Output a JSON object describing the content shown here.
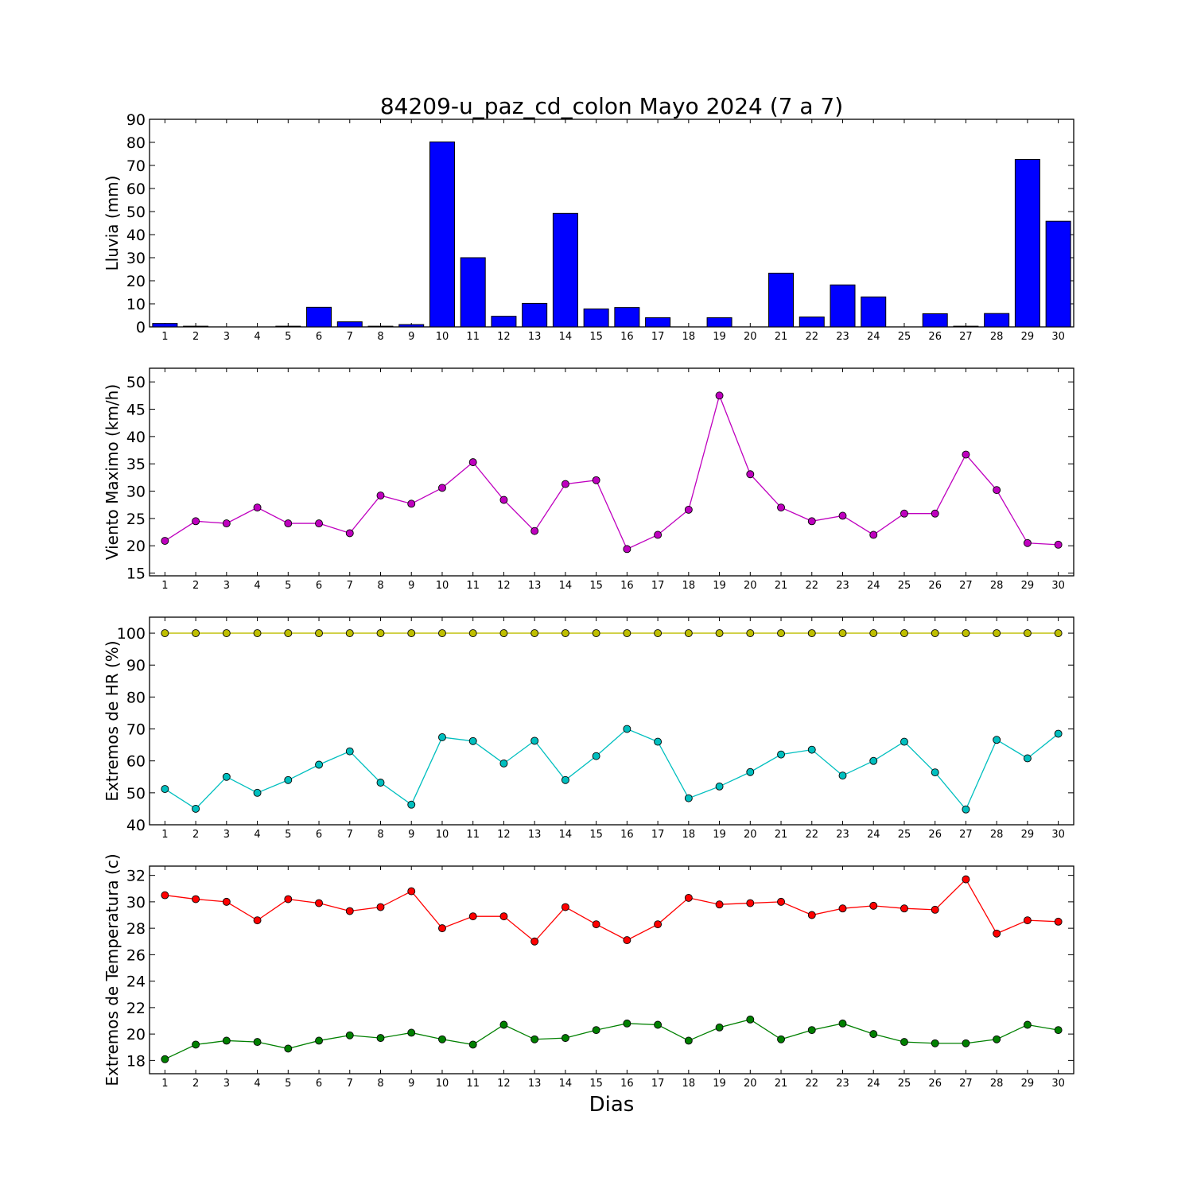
{
  "title": "84209-u_paz_cd_colon Mayo 2024  (7 a 7)",
  "xlabel": "Dias",
  "chart_data": [
    {
      "type": "bar",
      "ylabel": "Lluvia (mm)",
      "x": [
        1,
        2,
        3,
        4,
        5,
        6,
        7,
        8,
        9,
        10,
        11,
        12,
        13,
        14,
        15,
        16,
        17,
        18,
        19,
        20,
        21,
        22,
        23,
        24,
        25,
        26,
        27,
        28,
        29,
        30
      ],
      "ylim": [
        0,
        90
      ],
      "yticks": [
        0,
        10,
        20,
        30,
        40,
        50,
        60,
        70,
        80,
        90
      ],
      "series": [
        {
          "color": "#0000ff",
          "values": [
            1.5,
            0.3,
            0,
            0,
            0.3,
            8.5,
            2.2,
            0.3,
            1.0,
            80.2,
            30.0,
            4.6,
            10.2,
            49.2,
            7.8,
            8.4,
            4.0,
            0,
            4.0,
            0,
            23.3,
            4.3,
            18.2,
            13.0,
            0,
            5.7,
            0.3,
            5.8,
            72.6,
            45.8
          ]
        }
      ]
    },
    {
      "type": "line",
      "ylabel": "Viento Maximo (km/h)",
      "x": [
        1,
        2,
        3,
        4,
        5,
        6,
        7,
        8,
        9,
        10,
        11,
        12,
        13,
        14,
        15,
        16,
        17,
        18,
        19,
        20,
        21,
        22,
        23,
        24,
        25,
        26,
        27,
        28,
        29,
        30
      ],
      "ylim": [
        14.5,
        52.5
      ],
      "yticks": [
        15,
        20,
        25,
        30,
        35,
        40,
        45,
        50
      ],
      "series": [
        {
          "color": "#bf00bf",
          "values": [
            20.9,
            24.5,
            24.1,
            27.0,
            24.1,
            24.1,
            22.3,
            29.2,
            27.7,
            30.6,
            35.3,
            28.4,
            22.7,
            31.3,
            32.0,
            19.4,
            22.0,
            26.6,
            47.5,
            33.1,
            27.0,
            24.5,
            25.5,
            22.0,
            25.9,
            25.9,
            36.7,
            30.2,
            20.5,
            20.2
          ]
        }
      ]
    },
    {
      "type": "line",
      "ylabel": "Extremos de HR (%)",
      "x": [
        1,
        2,
        3,
        4,
        5,
        6,
        7,
        8,
        9,
        10,
        11,
        12,
        13,
        14,
        15,
        16,
        17,
        18,
        19,
        20,
        21,
        22,
        23,
        24,
        25,
        26,
        27,
        28,
        29,
        30
      ],
      "ylim": [
        40,
        105
      ],
      "yticks": [
        40,
        50,
        60,
        70,
        80,
        90,
        100
      ],
      "series": [
        {
          "color": "#bfbf00",
          "values": [
            100,
            100,
            100,
            100,
            100,
            100,
            100,
            100,
            100,
            100,
            100,
            100,
            100,
            100,
            100,
            100,
            100,
            100,
            100,
            100,
            100,
            100,
            100,
            100,
            100,
            100,
            100,
            100,
            100,
            100
          ]
        },
        {
          "color": "#00bfbf",
          "values": [
            51.2,
            45.0,
            55.0,
            50.0,
            54.0,
            58.8,
            63.0,
            53.2,
            46.3,
            67.4,
            66.2,
            59.2,
            66.3,
            54.0,
            61.5,
            70.0,
            66.0,
            48.3,
            52.0,
            56.5,
            62.0,
            63.5,
            55.4,
            60.0,
            66.0,
            56.4,
            44.8,
            66.6,
            60.8,
            68.5
          ]
        }
      ]
    },
    {
      "type": "line",
      "ylabel": "Extremos de Temperatura (c)",
      "x": [
        1,
        2,
        3,
        4,
        5,
        6,
        7,
        8,
        9,
        10,
        11,
        12,
        13,
        14,
        15,
        16,
        17,
        18,
        19,
        20,
        21,
        22,
        23,
        24,
        25,
        26,
        27,
        28,
        29,
        30
      ],
      "ylim": [
        17,
        32.7
      ],
      "yticks": [
        18,
        20,
        22,
        24,
        26,
        28,
        30,
        32
      ],
      "series": [
        {
          "color": "#ff0000",
          "values": [
            30.5,
            30.2,
            30.0,
            28.6,
            30.2,
            29.9,
            29.3,
            29.6,
            30.8,
            28.0,
            28.9,
            28.9,
            27.0,
            29.6,
            28.3,
            27.1,
            28.3,
            30.3,
            29.8,
            29.9,
            30.0,
            29.0,
            29.5,
            29.7,
            29.5,
            29.4,
            31.7,
            27.6,
            28.6,
            28.5
          ]
        },
        {
          "color": "#008000",
          "values": [
            18.1,
            19.2,
            19.5,
            19.4,
            18.9,
            19.5,
            19.9,
            19.7,
            20.1,
            19.6,
            19.2,
            20.7,
            19.6,
            19.7,
            20.3,
            20.8,
            20.7,
            19.5,
            20.5,
            21.1,
            19.6,
            20.3,
            20.8,
            20.0,
            19.4,
            19.3,
            19.3,
            19.6,
            20.7,
            20.3
          ]
        }
      ]
    }
  ]
}
